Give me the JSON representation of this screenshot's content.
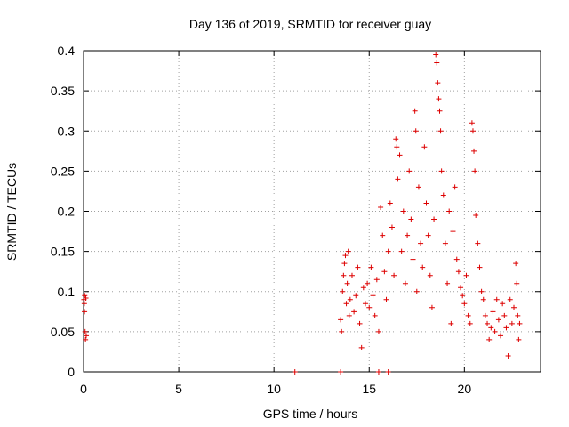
{
  "chart_data": {
    "type": "scatter",
    "title": "Day 136 of 2019, SRMTID for receiver guay",
    "xlabel": "GPS time / hours",
    "ylabel": "SRMTID / TECUs",
    "xlim": [
      0,
      24
    ],
    "ylim": [
      0,
      0.4
    ],
    "xticks": [
      0,
      5,
      10,
      15,
      20
    ],
    "xtick_labels": [
      "0",
      "5",
      "10",
      "15",
      "20"
    ],
    "yticks": [
      0,
      0.05,
      0.1,
      0.15,
      0.2,
      0.25,
      0.3,
      0.35,
      0.4
    ],
    "ytick_labels": [
      "0",
      "0.05",
      "0.1",
      "0.15",
      "0.2",
      "0.25",
      "0.3",
      "0.35",
      "0.4"
    ],
    "grid": true,
    "marker": "plus",
    "colors": {
      "series": "#dd0000",
      "axis": "#000000",
      "grid": "#a0a0a0"
    },
    "series": [
      {
        "name": "SRMTID",
        "points": [
          [
            0.02,
            0.09
          ],
          [
            0.04,
            0.085
          ],
          [
            0.05,
            0.075
          ],
          [
            0.06,
            0.095
          ],
          [
            0.08,
            0.05
          ],
          [
            0.1,
            0.04
          ],
          [
            0.12,
            0.092
          ],
          [
            0.14,
            0.045
          ],
          [
            11.1,
            0.0
          ],
          [
            13.5,
            0.0
          ],
          [
            15.5,
            0.0
          ],
          [
            16.0,
            0.0
          ],
          [
            13.5,
            0.065
          ],
          [
            13.55,
            0.05
          ],
          [
            13.6,
            0.1
          ],
          [
            13.65,
            0.12
          ],
          [
            13.7,
            0.135
          ],
          [
            13.75,
            0.145
          ],
          [
            13.8,
            0.085
          ],
          [
            13.85,
            0.11
          ],
          [
            13.9,
            0.15
          ],
          [
            13.95,
            0.07
          ],
          [
            14.0,
            0.09
          ],
          [
            14.1,
            0.12
          ],
          [
            14.2,
            0.075
          ],
          [
            14.3,
            0.095
          ],
          [
            14.4,
            0.13
          ],
          [
            14.5,
            0.06
          ],
          [
            14.6,
            0.03
          ],
          [
            14.7,
            0.105
          ],
          [
            14.8,
            0.085
          ],
          [
            14.9,
            0.11
          ],
          [
            15.0,
            0.08
          ],
          [
            15.1,
            0.13
          ],
          [
            15.2,
            0.095
          ],
          [
            15.3,
            0.07
          ],
          [
            15.4,
            0.115
          ],
          [
            15.5,
            0.05
          ],
          [
            15.6,
            0.205
          ],
          [
            15.7,
            0.17
          ],
          [
            15.8,
            0.125
          ],
          [
            15.9,
            0.09
          ],
          [
            16.0,
            0.15
          ],
          [
            16.1,
            0.21
          ],
          [
            16.2,
            0.18
          ],
          [
            16.3,
            0.12
          ],
          [
            16.4,
            0.29
          ],
          [
            16.45,
            0.28
          ],
          [
            16.5,
            0.24
          ],
          [
            16.6,
            0.27
          ],
          [
            16.7,
            0.15
          ],
          [
            16.8,
            0.2
          ],
          [
            16.9,
            0.11
          ],
          [
            17.0,
            0.17
          ],
          [
            17.1,
            0.25
          ],
          [
            17.2,
            0.19
          ],
          [
            17.3,
            0.14
          ],
          [
            17.4,
            0.325
          ],
          [
            17.45,
            0.3
          ],
          [
            17.5,
            0.1
          ],
          [
            17.6,
            0.23
          ],
          [
            17.7,
            0.16
          ],
          [
            17.8,
            0.13
          ],
          [
            17.9,
            0.28
          ],
          [
            18.0,
            0.21
          ],
          [
            18.1,
            0.17
          ],
          [
            18.2,
            0.12
          ],
          [
            18.3,
            0.08
          ],
          [
            18.4,
            0.19
          ],
          [
            18.5,
            0.395
          ],
          [
            18.55,
            0.385
          ],
          [
            18.6,
            0.36
          ],
          [
            18.65,
            0.34
          ],
          [
            18.7,
            0.325
          ],
          [
            18.75,
            0.3
          ],
          [
            18.8,
            0.25
          ],
          [
            18.9,
            0.22
          ],
          [
            19.0,
            0.16
          ],
          [
            19.1,
            0.11
          ],
          [
            19.2,
            0.2
          ],
          [
            19.3,
            0.06
          ],
          [
            19.4,
            0.175
          ],
          [
            19.5,
            0.23
          ],
          [
            19.6,
            0.14
          ],
          [
            19.7,
            0.125
          ],
          [
            19.8,
            0.105
          ],
          [
            19.9,
            0.095
          ],
          [
            20.0,
            0.085
          ],
          [
            20.1,
            0.12
          ],
          [
            20.2,
            0.07
          ],
          [
            20.3,
            0.06
          ],
          [
            20.4,
            0.31
          ],
          [
            20.45,
            0.3
          ],
          [
            20.5,
            0.275
          ],
          [
            20.55,
            0.25
          ],
          [
            20.6,
            0.195
          ],
          [
            20.7,
            0.16
          ],
          [
            20.8,
            0.13
          ],
          [
            20.9,
            0.1
          ],
          [
            21.0,
            0.09
          ],
          [
            21.1,
            0.07
          ],
          [
            21.2,
            0.06
          ],
          [
            21.3,
            0.04
          ],
          [
            21.4,
            0.055
          ],
          [
            21.5,
            0.075
          ],
          [
            21.6,
            0.05
          ],
          [
            21.7,
            0.09
          ],
          [
            21.8,
            0.065
          ],
          [
            21.9,
            0.045
          ],
          [
            22.0,
            0.085
          ],
          [
            22.1,
            0.07
          ],
          [
            22.2,
            0.055
          ],
          [
            22.3,
            0.02
          ],
          [
            22.4,
            0.09
          ],
          [
            22.5,
            0.06
          ],
          [
            22.6,
            0.08
          ],
          [
            22.7,
            0.135
          ],
          [
            22.75,
            0.11
          ],
          [
            22.8,
            0.07
          ],
          [
            22.85,
            0.04
          ],
          [
            22.9,
            0.06
          ]
        ]
      }
    ]
  }
}
